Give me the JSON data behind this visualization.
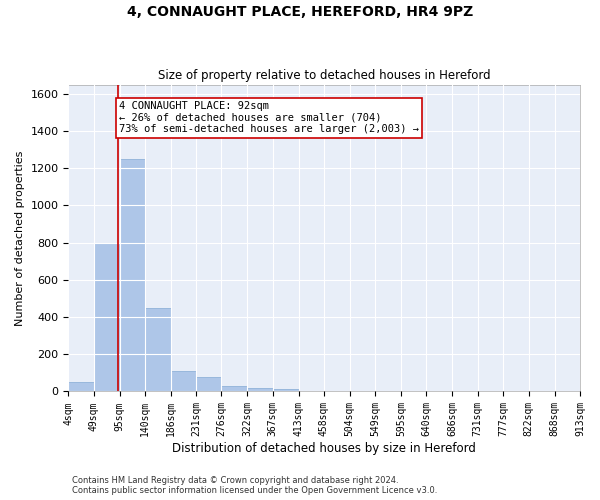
{
  "title": "4, CONNAUGHT PLACE, HEREFORD, HR4 9PZ",
  "subtitle": "Size of property relative to detached houses in Hereford",
  "xlabel": "Distribution of detached houses by size in Hereford",
  "ylabel": "Number of detached properties",
  "bar_color": "#aec6e8",
  "bar_edge_color": "#85aad4",
  "background_color": "#e8eef8",
  "grid_color": "#ffffff",
  "fig_background": "#ffffff",
  "property_line_color": "#cc0000",
  "property_line_x": 92,
  "annotation_text": "4 CONNAUGHT PLACE: 92sqm\n← 26% of detached houses are smaller (704)\n73% of semi-detached houses are larger (2,003) →",
  "annotation_box_color": "#ffffff",
  "annotation_box_edge": "#cc0000",
  "bin_edges": [
    4,
    49,
    95,
    140,
    186,
    231,
    276,
    322,
    367,
    413,
    458,
    504,
    549,
    595,
    640,
    686,
    731,
    777,
    822,
    868,
    913
  ],
  "bar_heights": [
    50,
    800,
    1250,
    450,
    110,
    80,
    30,
    20,
    15,
    0,
    0,
    0,
    0,
    0,
    0,
    0,
    0,
    0,
    0,
    0
  ],
  "ylim": [
    0,
    1650
  ],
  "yticks": [
    0,
    200,
    400,
    600,
    800,
    1000,
    1200,
    1400,
    1600
  ],
  "xtick_labels": [
    "4sqm",
    "49sqm",
    "95sqm",
    "140sqm",
    "186sqm",
    "231sqm",
    "276sqm",
    "322sqm",
    "367sqm",
    "413sqm",
    "458sqm",
    "504sqm",
    "549sqm",
    "595sqm",
    "640sqm",
    "686sqm",
    "731sqm",
    "777sqm",
    "822sqm",
    "868sqm",
    "913sqm"
  ],
  "footer_line1": "Contains HM Land Registry data © Crown copyright and database right 2024.",
  "footer_line2": "Contains public sector information licensed under the Open Government Licence v3.0."
}
